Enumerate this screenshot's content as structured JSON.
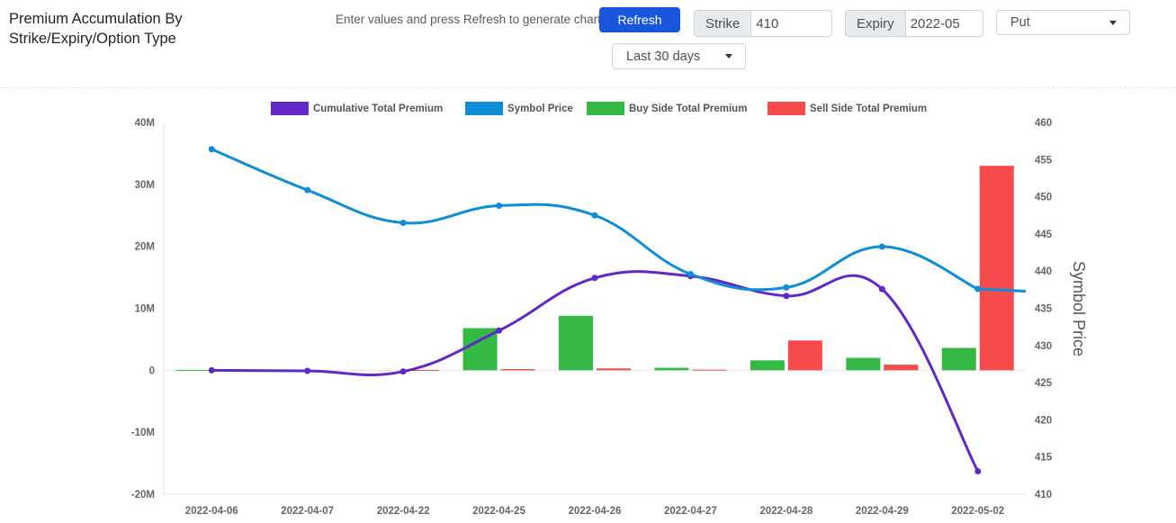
{
  "header": {
    "title": "Premium Accumulation By Strike/Expiry/Option Type",
    "hint": "Enter values and press Refresh to generate chart",
    "refresh_label": "Refresh",
    "strike_label": "Strike",
    "strike_value": "410",
    "expiry_label": "Expiry",
    "expiry_value": "2022-05",
    "option_type": "Put",
    "period": "Last 30 days"
  },
  "chart_data": {
    "type": "bar",
    "categories": [
      "2022-04-06",
      "2022-04-07",
      "2022-04-22",
      "2022-04-25",
      "2022-04-26",
      "2022-04-27",
      "2022-04-28",
      "2022-04-29",
      "2022-05-02"
    ],
    "series": [
      {
        "name": "Cumulative Total Premium",
        "type": "line",
        "axis": "left",
        "color": "#6128c5",
        "values": [
          0,
          -0.1,
          -0.2,
          6.4,
          14.9,
          15.2,
          12.0,
          13.1,
          -16.3
        ]
      },
      {
        "name": "Symbol Price",
        "type": "line",
        "axis": "right",
        "color": "#0d8ed6",
        "values": [
          456.4,
          450.9,
          446.5,
          448.8,
          447.5,
          439.6,
          437.8,
          443.3,
          437.6
        ]
      },
      {
        "name": "Buy Side Total Premium",
        "type": "bar",
        "axis": "left",
        "color": "#34b945",
        "values": [
          0.05,
          0.0,
          0.0,
          6.8,
          8.8,
          0.4,
          1.6,
          2.0,
          3.6
        ]
      },
      {
        "name": "Sell Side Total Premium",
        "type": "bar",
        "axis": "left",
        "color": "#f74a4d",
        "values": [
          0.0,
          0.0,
          0.05,
          0.2,
          0.3,
          0.1,
          4.8,
          0.9,
          33.0
        ]
      }
    ],
    "y_left": {
      "min": -20,
      "max": 40,
      "ticks": [
        "-20M",
        "-10M",
        "0",
        "10M",
        "20M",
        "30M",
        "40M"
      ],
      "values": [
        -20,
        -10,
        0,
        10,
        20,
        30,
        40
      ]
    },
    "y_right": {
      "min": 410,
      "max": 460,
      "label": "Symbol Price",
      "ticks": [
        "410",
        "415",
        "420",
        "425",
        "430",
        "435",
        "440",
        "445",
        "450",
        "455",
        "460"
      ]
    },
    "legend_position": "top"
  }
}
